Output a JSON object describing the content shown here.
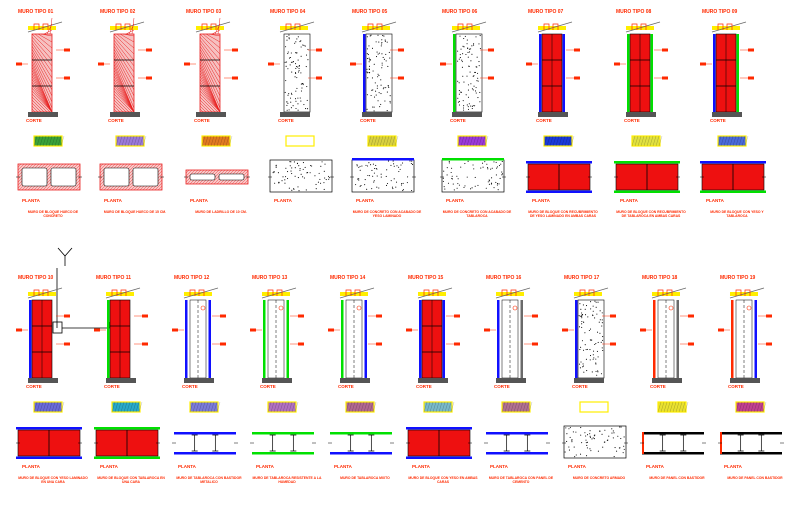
{
  "drawing": {
    "colors": {
      "red": "#ff2a00",
      "yellow": "#ffee00",
      "blue": "#1010ff",
      "green": "#00e000",
      "gray": "#6a6a6a",
      "black": "#000000",
      "hatch_red": "#e82020"
    },
    "walls": [
      {
        "title": "MURO TIPO 01",
        "section_label": "CORTE",
        "plan_label": "PLANTA",
        "fill": "brick",
        "left_line": "none",
        "right_line": "none",
        "swatch": "#3aa13a",
        "plan": "hollow",
        "note": "MURO DE BLOQUE HUECO DE CONCRETO"
      },
      {
        "title": "MURO TIPO 02",
        "section_label": "CORTE",
        "plan_label": "PLANTA",
        "fill": "brick",
        "left_line": "none",
        "right_line": "none",
        "swatch": "#9a7ad8",
        "plan": "hollow",
        "note": "MURO DE BLOQUE HUECO DE 15 CM."
      },
      {
        "title": "MURO TIPO 03",
        "section_label": "CORTE",
        "plan_label": "PLANTA",
        "fill": "brick",
        "left_line": "none",
        "right_line": "none",
        "swatch": "#e07a20",
        "plan": "thin",
        "note": "MURO DE LADRILLO DE 10 CM."
      },
      {
        "title": "MURO TIPO 04",
        "section_label": "CORTE",
        "plan_label": "PLANTA",
        "fill": "concrete",
        "left_line": "none",
        "right_line": "none",
        "swatch": "#ffffff",
        "plan": "concrete",
        "note": ""
      },
      {
        "title": "MURO TIPO 05",
        "section_label": "CORTE",
        "plan_label": "PLANTA",
        "fill": "concrete",
        "left_line": "blue",
        "right_line": "none",
        "swatch": "#d8d040",
        "plan": "concrete-blue",
        "note": "MURO DE CONCRETO CON ACABADO DE YESO LAMINADO"
      },
      {
        "title": "MURO TIPO 06",
        "section_label": "CORTE",
        "plan_label": "PLANTA",
        "fill": "concrete",
        "left_line": "green",
        "right_line": "none",
        "swatch": "#9a3ad8",
        "plan": "concrete-green",
        "note": "MURO DE CONCRETO CON ACABADO DE TABLAROCA"
      },
      {
        "title": "MURO TIPO 07",
        "section_label": "CORTE",
        "plan_label": "PLANTA",
        "fill": "red",
        "left_line": "blue",
        "right_line": "blue",
        "swatch": "#1a3ad8",
        "plan": "red-blue",
        "note": "MURO DE BLOQUE CON RECUBRIMIENTO DE YESO LAMINADO EN AMBAS CARAS"
      },
      {
        "title": "MURO TIPO 08",
        "section_label": "CORTE",
        "plan_label": "PLANTA",
        "fill": "red",
        "left_line": "green",
        "right_line": "green",
        "swatch": "#e0e040",
        "plan": "red-green",
        "note": "MURO DE BLOQUE CON RECUBRIMIENTO DE TABLAROCA EN AMBAS CARAS"
      },
      {
        "title": "MURO TIPO 09",
        "section_label": "CORTE",
        "plan_label": "PLANTA",
        "fill": "red",
        "left_line": "blue",
        "right_line": "green",
        "swatch": "#4a6ad8",
        "plan": "red-mixed",
        "note": "MURO DE BLOQUE CON YESO Y TABLAROCA"
      },
      {
        "title": "MURO TIPO 10",
        "section_label": "CORTE",
        "plan_label": "PLANTA",
        "fill": "red",
        "left_line": "blue",
        "right_line": "none",
        "swatch": "#6a6ad8",
        "plan": "red-blue",
        "note": "MURO DE BLOQUE CON YESO LAMINADO EN UNA CARA"
      },
      {
        "title": "MURO TIPO 11",
        "section_label": "CORTE",
        "plan_label": "PLANTA",
        "fill": "red",
        "left_line": "green",
        "right_line": "none",
        "swatch": "#28a8c8",
        "plan": "red-green",
        "note": "MURO DE BLOQUE CON TABLAROCA EN UNA CARA"
      },
      {
        "title": "MURO TIPO 12",
        "section_label": "CORTE",
        "plan_label": "PLANTA",
        "fill": "white",
        "left_line": "blue",
        "right_line": "blue",
        "swatch": "#7a7ad8",
        "plan": "stud-blue",
        "note": "MURO DE TABLAROCA CON BASTIDOR METALICO"
      },
      {
        "title": "MURO TIPO 13",
        "section_label": "CORTE",
        "plan_label": "PLANTA",
        "fill": "white",
        "left_line": "green",
        "right_line": "green",
        "swatch": "#b070c0",
        "plan": "stud-green",
        "note": "MURO DE TABLAROCA RESISTENTE A LA HUMEDAD"
      },
      {
        "title": "MURO TIPO 14",
        "section_label": "CORTE",
        "plan_label": "PLANTA",
        "fill": "white",
        "left_line": "green",
        "right_line": "blue",
        "swatch": "#b06890",
        "plan": "stud-mixed",
        "note": "MURO DE TABLAROCA MIXTO"
      },
      {
        "title": "MURO TIPO 15",
        "section_label": "CORTE",
        "plan_label": "PLANTA",
        "fill": "red",
        "left_line": "blue",
        "right_line": "blue",
        "swatch": "#78b8c8",
        "plan": "red-blue",
        "note": "MURO DE BLOQUE CON YESO EN AMBAS CARAS"
      },
      {
        "title": "MURO TIPO 16",
        "section_label": "CORTE",
        "plan_label": "PLANTA",
        "fill": "white",
        "left_line": "blue",
        "right_line": "gray",
        "swatch": "#b07090",
        "plan": "stud-blue",
        "note": "MURO DE TABLAROCA CON PANEL DE CEMENTO"
      },
      {
        "title": "MURO TIPO 17",
        "section_label": "CORTE",
        "plan_label": "PLANTA",
        "fill": "concrete",
        "left_line": "blue",
        "right_line": "none",
        "swatch": "#ffffff",
        "plan": "concrete",
        "note": "MURO DE CONCRETO ARMADO"
      },
      {
        "title": "MURO TIPO 18",
        "section_label": "CORTE",
        "plan_label": "PLANTA",
        "fill": "white",
        "left_line": "red",
        "right_line": "gray",
        "swatch": "#e8e030",
        "plan": "stud-black",
        "note": "MURO DE PANEL CON BASTIDOR"
      },
      {
        "title": "MURO TIPO 19",
        "section_label": "CORTE",
        "plan_label": "PLANTA",
        "fill": "white",
        "left_line": "red",
        "right_line": "blue",
        "swatch": "#c04090",
        "plan": "stud-black",
        "note": "MURO DE PANEL CON BASTIDOR"
      }
    ]
  }
}
